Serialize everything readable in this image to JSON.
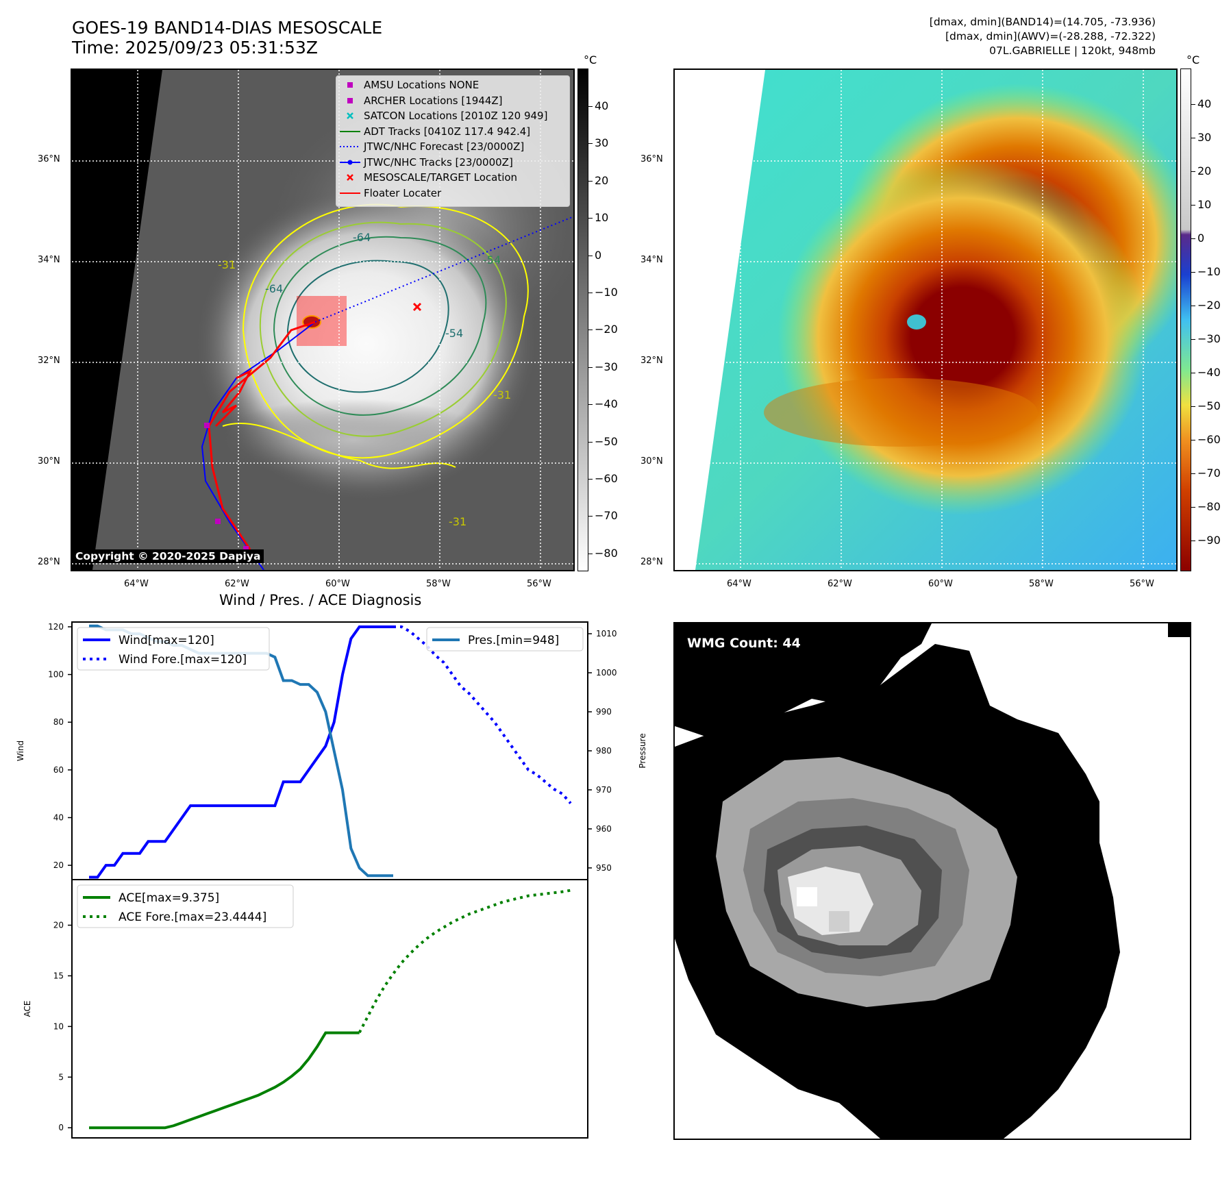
{
  "header": {
    "title_line1": "GOES-19 BAND14-DIAS MESOSCALE",
    "title_line2": "Time: 2025/09/23 05:31:53Z",
    "info_line1": "[dmax, dmin](BAND14)=(14.705, -73.936)",
    "info_line2": "[dmax, dmin](AWV)=(-28.288, -72.322)",
    "info_line3": "07L.GABRIELLE | 120kt, 948mb"
  },
  "map_axes": {
    "lat_ticks": [
      "36°N",
      "34°N",
      "32°N",
      "30°N",
      "28°N"
    ],
    "lon_ticks": [
      "64°W",
      "62°W",
      "60°W",
      "58°W",
      "56°W"
    ]
  },
  "ir_panel": {
    "contour_labels": [
      "-64",
      "-64",
      "-54",
      "-31",
      "-31",
      "-31",
      "-54"
    ],
    "copyright": "Copyright © 2020-2025 Dapiya",
    "legend": [
      {
        "label": "AMSU Locations NONE",
        "symbol": "square",
        "color": "#bf00bf"
      },
      {
        "label": "ARCHER Locations [1944Z]",
        "symbol": "square",
        "color": "#bf00bf"
      },
      {
        "label": "SATCON Locations [2010Z 120 949]",
        "symbol": "x",
        "color": "#00bfbf"
      },
      {
        "label": "ADT Tracks [0410Z 117.4 942.4]",
        "symbol": "line",
        "color": "#008000"
      },
      {
        "label": "JTWC/NHC Forecast [23/0000Z]",
        "symbol": "dotted",
        "color": "#0000ff"
      },
      {
        "label": "JTWC/NHC Tracks [23/0000Z]",
        "symbol": "line-dot",
        "color": "#0000ff"
      },
      {
        "label": "MESOSCALE/TARGET Location",
        "symbol": "x",
        "color": "#ff0000"
      },
      {
        "label": "Floater Locater",
        "symbol": "line",
        "color": "#ff0000"
      }
    ],
    "colorbar_unit": "°C",
    "colorbar_ticks": [
      "40",
      "30",
      "20",
      "10",
      "0",
      "−10",
      "−20",
      "−30",
      "−40",
      "−50",
      "−60",
      "−70",
      "−80"
    ]
  },
  "enh_panel": {
    "colorbar_unit": "°C",
    "colorbar_ticks": [
      "40",
      "30",
      "20",
      "10",
      "0",
      "−10",
      "−20",
      "−30",
      "−40",
      "−50",
      "−60",
      "−70",
      "−80",
      "−90"
    ]
  },
  "wmg_panel": {
    "label": "WMG Count: 44"
  },
  "chart_data": [
    {
      "type": "line",
      "title": "Wind / Pres. / ACE Diagnosis",
      "ylabel": "Wind",
      "ylabel_right": "Pressure",
      "ylim": [
        14,
        122
      ],
      "ylim_right": [
        947,
        1013
      ],
      "yticks": [
        20,
        40,
        60,
        80,
        100,
        120
      ],
      "yticks_right": [
        950,
        960,
        970,
        980,
        990,
        1000,
        1010
      ],
      "series": [
        {
          "name": "Wind[max=120]",
          "color": "#0000ff",
          "style": "solid",
          "axis": "left",
          "x": [
            0,
            1,
            2,
            3,
            4,
            5,
            6,
            7,
            8,
            9,
            10,
            11,
            12,
            13,
            14,
            15,
            16,
            17,
            18,
            19,
            20,
            21,
            22,
            23,
            24,
            25,
            26,
            27,
            28,
            29,
            30,
            31,
            32,
            33,
            34,
            35,
            36
          ],
          "values": [
            15,
            15,
            20,
            20,
            25,
            25,
            25,
            30,
            30,
            30,
            35,
            40,
            45,
            45,
            45,
            45,
            45,
            45,
            45,
            45,
            45,
            45,
            45,
            55,
            55,
            55,
            60,
            65,
            70,
            80,
            100,
            115,
            120,
            120,
            120,
            120,
            120
          ]
        },
        {
          "name": "Wind Fore.[max=120]",
          "color": "#0000ff",
          "style": "dotted",
          "axis": "left",
          "x": [
            36,
            37,
            38,
            39,
            40,
            41,
            42,
            43,
            44,
            45,
            46,
            47,
            48,
            49,
            50,
            51,
            52,
            53,
            54,
            55,
            56,
            57
          ],
          "values": [
            120,
            120,
            118,
            115,
            112,
            108,
            105,
            100,
            95,
            92,
            88,
            84,
            80,
            75,
            70,
            65,
            60,
            58,
            55,
            52,
            50,
            46
          ]
        },
        {
          "name": "Pres.[min=948]",
          "color": "#1f77b4",
          "style": "solid",
          "axis": "right",
          "x": [
            0,
            1,
            2,
            3,
            4,
            5,
            6,
            7,
            8,
            9,
            10,
            11,
            12,
            13,
            14,
            15,
            16,
            17,
            18,
            19,
            20,
            21,
            22,
            23,
            24,
            25,
            26,
            27,
            28,
            29,
            30,
            31,
            32,
            33,
            34,
            35,
            36
          ],
          "values": [
            1012,
            1012,
            1011,
            1011,
            1011,
            1010,
            1010,
            1009,
            1008,
            1008,
            1007,
            1007,
            1006,
            1005,
            1005,
            1005,
            1005,
            1005,
            1005,
            1005,
            1005,
            1005,
            1004,
            998,
            998,
            997,
            997,
            995,
            990,
            980,
            970,
            955,
            950,
            948,
            948,
            948,
            948
          ]
        }
      ]
    },
    {
      "type": "line",
      "title": "",
      "ylabel": "ACE",
      "ylim": [
        -1,
        24.5
      ],
      "yticks": [
        0,
        5,
        10,
        15,
        20
      ],
      "series": [
        {
          "name": "ACE[max=9.375]",
          "color": "#008000",
          "style": "solid",
          "x": [
            0,
            1,
            2,
            3,
            4,
            5,
            6,
            7,
            8,
            9,
            10,
            11,
            12,
            13,
            14,
            15,
            16,
            17,
            18,
            19,
            20,
            21,
            22,
            23,
            24,
            25,
            26,
            27,
            28,
            29,
            30,
            31,
            32
          ],
          "values": [
            0,
            0,
            0,
            0,
            0,
            0,
            0,
            0,
            0,
            0,
            0.2,
            0.5,
            0.8,
            1.1,
            1.4,
            1.7,
            2.0,
            2.3,
            2.6,
            2.9,
            3.2,
            3.6,
            4.0,
            4.5,
            5.1,
            5.8,
            6.8,
            8.0,
            9.375,
            9.375,
            9.375,
            9.375,
            9.375
          ]
        },
        {
          "name": "ACE Fore.[max=23.4444]",
          "color": "#008000",
          "style": "dotted",
          "x": [
            32,
            33,
            34,
            35,
            36,
            37,
            38,
            39,
            40,
            41,
            42,
            43,
            44,
            45,
            46,
            47,
            48,
            49,
            50,
            51,
            52,
            53,
            54,
            55,
            56,
            57
          ],
          "values": [
            9.4,
            11.0,
            12.6,
            14.0,
            15.2,
            16.3,
            17.2,
            18.0,
            18.7,
            19.3,
            19.8,
            20.3,
            20.7,
            21.1,
            21.4,
            21.7,
            22.0,
            22.3,
            22.5,
            22.7,
            22.9,
            23.0,
            23.1,
            23.2,
            23.3,
            23.44
          ]
        }
      ]
    }
  ]
}
